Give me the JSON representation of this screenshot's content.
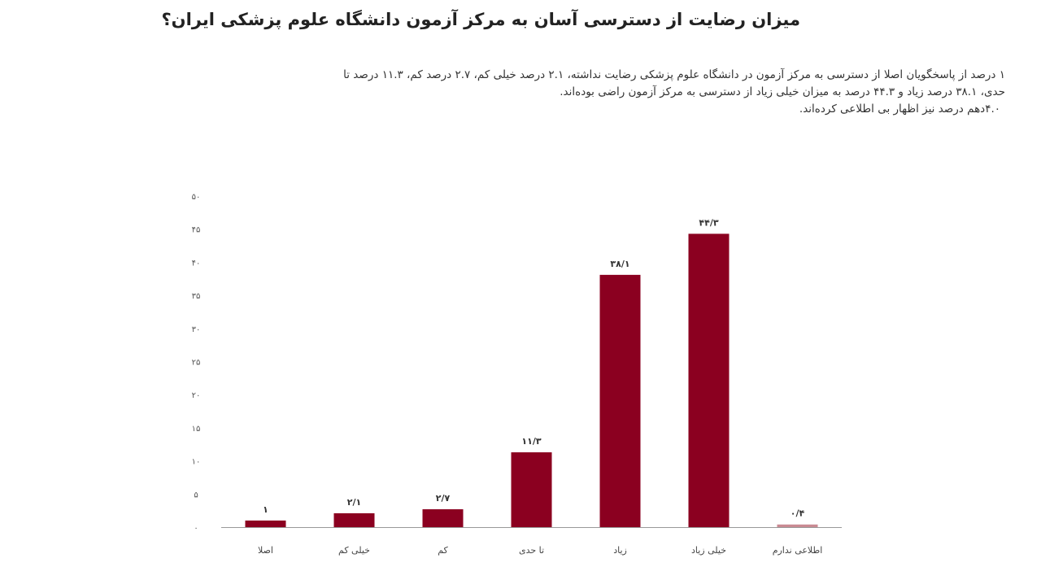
{
  "title": "میزان رضایت از دسترسی آسان به مرکز آزمون دانشگاه علوم پزشکی ایران؟",
  "description": [
    "۱ درصد از پاسخگویان اصلا از دسترسی به مرکز آزمون در دانشگاه علوم پزشکی رضایت نداشته، ۲.۱ درصد خیلی کم، ۲.۷ درصد کم، ۱۱.۳ درصد تا",
    "حدی، ۳۸.۱ درصد زیاد و ۴۴.۳ درصد به میزان خیلی زیاد از دسترسی به مرکز آزمون راضی بوده‌اند.",
    "۴.۰دهم درصد نیز اظهار بی اطلاعی کرده‌اند."
  ],
  "colors": {
    "bar": "#8b0020",
    "bar_light": "#c98a92",
    "axis": "#999999"
  },
  "chart_data": {
    "type": "bar",
    "categories": [
      "اصلا",
      "خیلی کم",
      "کم",
      "تا حدی",
      "زیاد",
      "خیلی زیاد",
      "اطلاعی ندارم"
    ],
    "values": [
      1,
      2.1,
      2.7,
      11.3,
      38.1,
      44.3,
      0.4
    ],
    "value_labels": [
      "۱",
      "۲/۱",
      "۲/۷",
      "۱۱/۳",
      "۳۸/۱",
      "۴۴/۳",
      "۰/۴"
    ],
    "yticks": [
      0,
      5,
      10,
      15,
      20,
      25,
      30,
      35,
      40,
      45,
      50
    ],
    "ytick_labels": [
      "۰",
      "۵",
      "۱۰",
      "۱۵",
      "۲۰",
      "۲۵",
      "۳۰",
      "۳۵",
      "۴۰",
      "۴۵",
      "۵۰"
    ],
    "ylim": [
      0,
      50
    ],
    "grid": false,
    "legend": "none"
  }
}
